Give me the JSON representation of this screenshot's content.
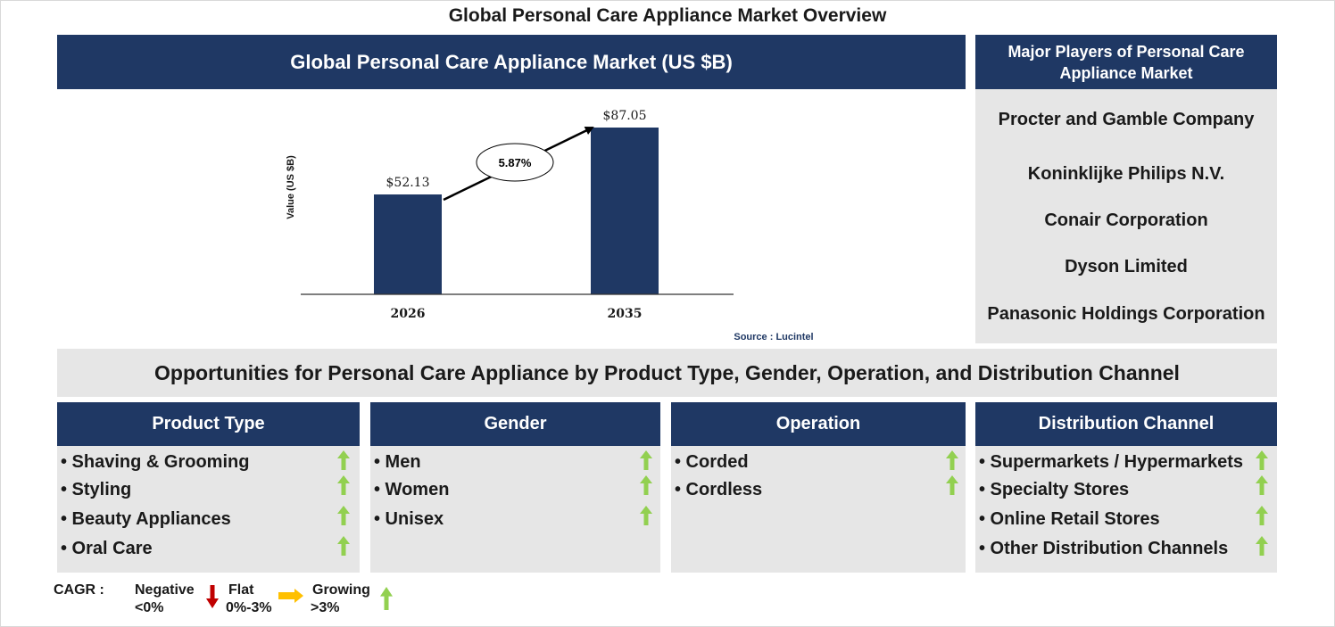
{
  "title": "Global Personal Care Appliance Market Overview",
  "market_header": "Global Personal Care Appliance Market (US $B)",
  "chart_data": {
    "type": "bar",
    "categories": [
      "2026",
      "2035"
    ],
    "values": [
      52.13,
      87.05
    ],
    "value_labels": [
      "$52.13",
      "$87.05"
    ],
    "ylabel": "Value (US $B)",
    "ylim": [
      0,
      100
    ],
    "cagr_label": "5.87%",
    "source": "Source : Lucintel",
    "bar_color": "#1f3864"
  },
  "players": {
    "header": "Major Players of Personal Care Appliance Market",
    "items": [
      "Procter and Gamble Company",
      "Koninklijke Philips N.V.",
      "Conair Corporation",
      "Dyson Limited",
      "Panasonic Holdings Corporation"
    ]
  },
  "opportunities_title": "Opportunities for Personal Care Appliance by Product Type, Gender, Operation, and Distribution Channel",
  "segments": [
    {
      "header": "Product Type",
      "items": [
        "• Shaving & Grooming",
        "• Styling",
        "• Beauty Appliances",
        "• Oral Care"
      ]
    },
    {
      "header": "Gender",
      "items": [
        "• Men",
        "• Women",
        "• Unisex"
      ]
    },
    {
      "header": "Operation",
      "items": [
        "• Corded",
        "• Cordless"
      ]
    },
    {
      "header": "Distribution Channel",
      "items": [
        "• Supermarkets / Hypermarkets",
        "• Specialty Stores",
        "• Online Retail Stores",
        "• Other Distribution Channels"
      ]
    }
  ],
  "legend": {
    "cagr": "CAGR :",
    "negative": "Negative",
    "negative_range": "<0%",
    "flat": "Flat",
    "flat_range": "0%-3%",
    "growing": "Growing",
    "growing_range": ">3%"
  },
  "colors": {
    "navy": "#1f3864",
    "panel_grey": "#e6e6e6",
    "growing_arrow": "#92d050",
    "negative_arrow": "#c00000",
    "flat_arrow": "#ffc000"
  }
}
